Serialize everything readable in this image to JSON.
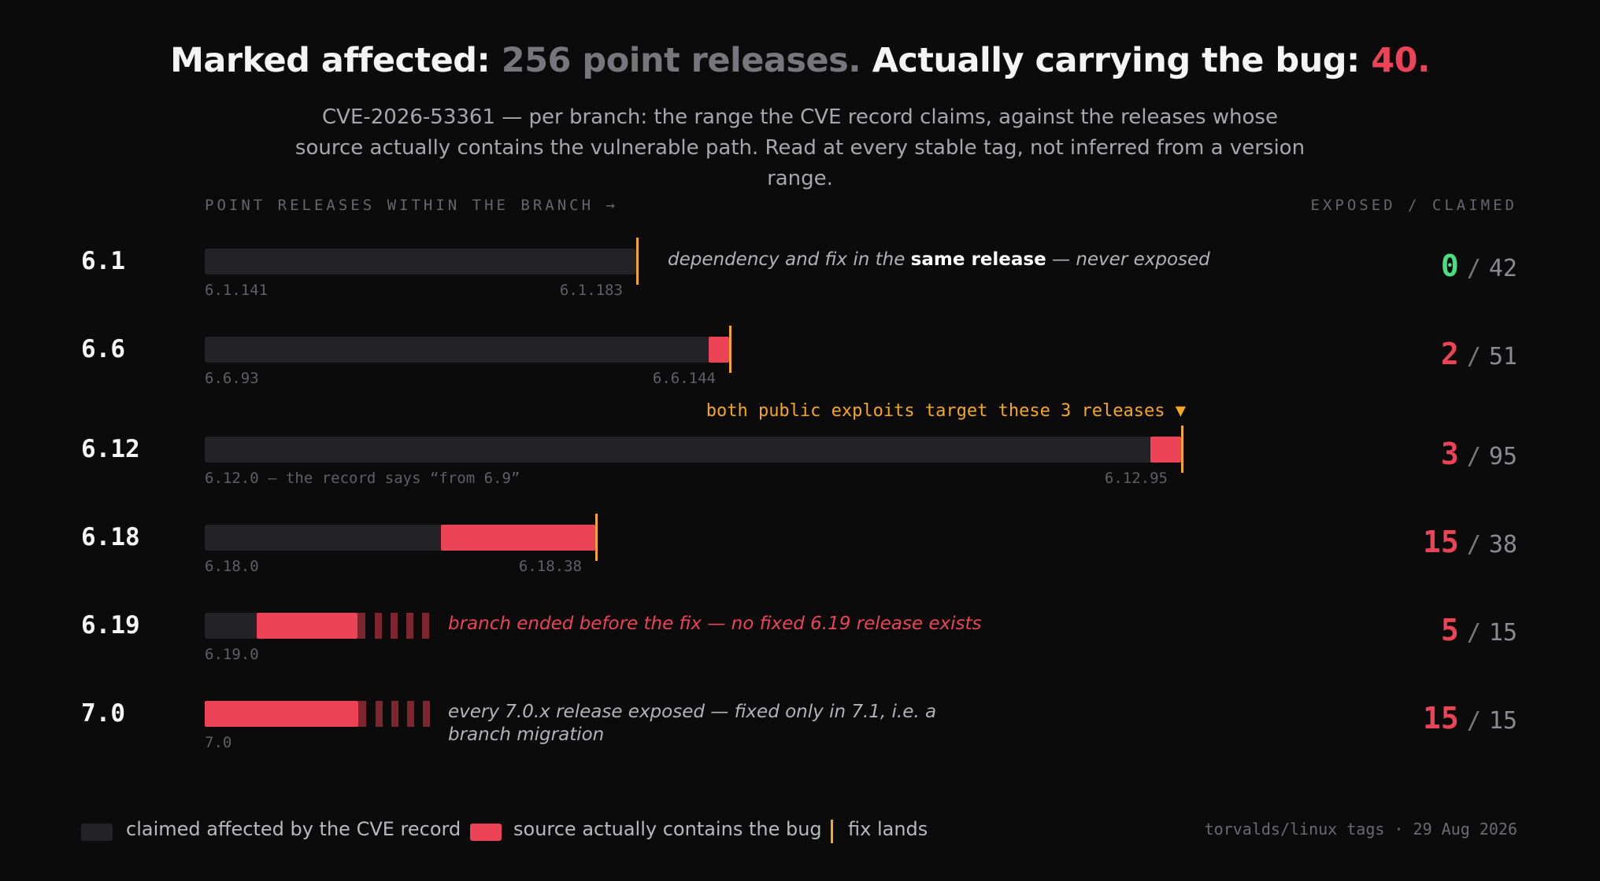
{
  "title": {
    "part1": "Marked affected:",
    "part2": "256 point releases.",
    "part3": "Actually carrying the bug:",
    "part4": "40."
  },
  "subtitle": "CVE-2026-53361 — per branch: the range the CVE record claims, against the releases whose source actually contains the vulnerable path. Read at every stable tag, not inferred from a version range.",
  "column_headers": {
    "left": "POINT RELEASES WITHIN THE BRANCH →",
    "right": "EXPOSED / CLAIMED"
  },
  "colors": {
    "claimed": "#232327",
    "bug": "#ec4356",
    "fix": "#f5a623",
    "zero": "#4ade80"
  },
  "chart_data": {
    "type": "bar",
    "title": "Marked affected: 256 point releases. Actually carrying the bug: 40.",
    "rows": [
      {
        "branch": "6.1",
        "claimed": 42,
        "exposed": 0,
        "start_label": "6.1.141",
        "end_label": "6.1.183",
        "fixed": true,
        "note_pre": "dependency and fix in the",
        "note_bold": "same release",
        "note_post": "— never exposed"
      },
      {
        "branch": "6.6",
        "claimed": 51,
        "exposed": 2,
        "start_label": "6.6.93",
        "end_label": "6.6.144",
        "fixed": true
      },
      {
        "branch": "6.12",
        "claimed": 95,
        "exposed": 3,
        "start_label": "6.12.0 — the record says “from 6.9”",
        "end_label": "6.12.95",
        "fixed": true,
        "annotation": "both public exploits target these 3 releases ▼"
      },
      {
        "branch": "6.18",
        "claimed": 38,
        "exposed": 15,
        "start_label": "6.18.0",
        "end_label": "6.18.38",
        "fixed": true
      },
      {
        "branch": "6.19",
        "claimed": 15,
        "exposed": 5,
        "start_label": "6.19.0",
        "fixed": false,
        "note": "branch ended before the fix — no fixed 6.19 release exists"
      },
      {
        "branch": "7.0",
        "claimed": 15,
        "exposed": 15,
        "start_label": "7.0",
        "fixed": false,
        "note": "every 7.0.x release exposed — fixed only in 7.1, i.e. a branch migration"
      }
    ],
    "totals": {
      "claimed": 256,
      "exposed": 40
    }
  },
  "legend": {
    "claimed": "claimed affected by the CVE record",
    "bug": "source actually contains the bug",
    "fix": "fix lands"
  },
  "source": "torvalds/linux tags · 29 Aug 2026"
}
